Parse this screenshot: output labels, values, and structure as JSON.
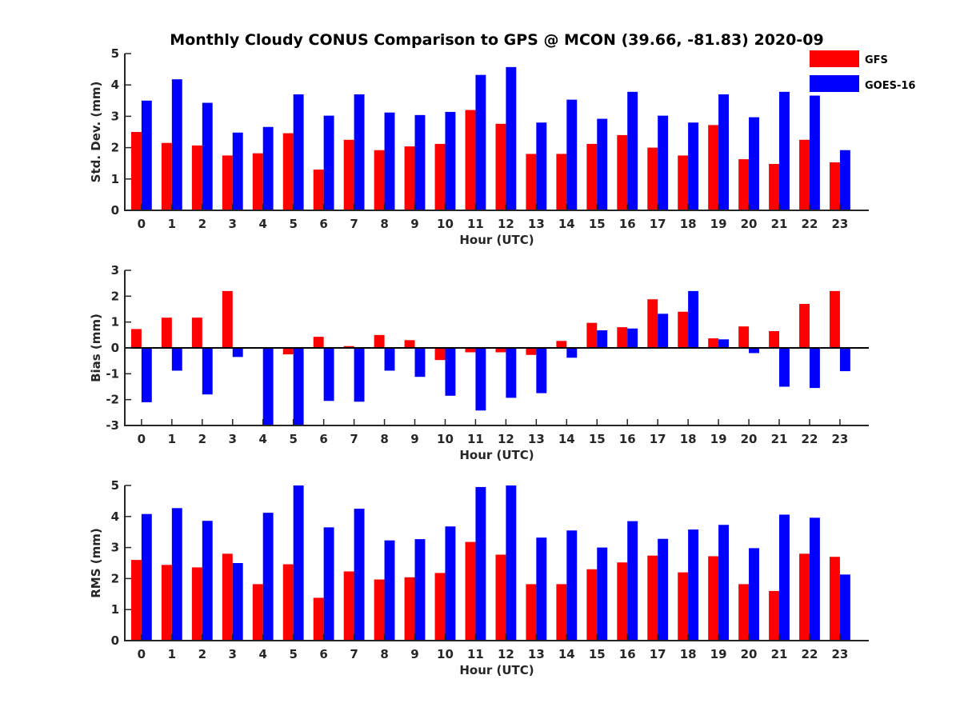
{
  "title": "Monthly Cloudy CONUS Comparison to GPS @ MCON (39.66, -81.83) 2020-09",
  "legend": [
    {
      "name": "GFS",
      "color": "#ff0000"
    },
    {
      "name": "GOES-16",
      "color": "#0000ff"
    }
  ],
  "chart_data": [
    {
      "type": "bar",
      "id": "std",
      "ylabel": "Std. Dev. (mm)",
      "xlabel": "Hour (UTC)",
      "ylim": [
        0,
        5
      ],
      "yticks": [
        0,
        1,
        2,
        3,
        4,
        5
      ],
      "categories": [
        "0",
        "1",
        "2",
        "3",
        "4",
        "5",
        "6",
        "7",
        "8",
        "9",
        "10",
        "11",
        "12",
        "13",
        "14",
        "15",
        "16",
        "17",
        "18",
        "19",
        "20",
        "21",
        "22",
        "23"
      ],
      "series": [
        {
          "name": "GFS",
          "color": "#ff0000",
          "values": [
            2.5,
            2.15,
            2.07,
            1.75,
            1.82,
            2.46,
            1.3,
            2.25,
            1.92,
            2.04,
            2.12,
            3.2,
            2.76,
            1.8,
            1.8,
            2.12,
            2.4,
            2.0,
            1.75,
            2.72,
            1.63,
            1.48,
            2.25,
            1.53
          ]
        },
        {
          "name": "GOES-16",
          "color": "#0000ff",
          "values": [
            3.5,
            4.18,
            3.43,
            2.48,
            2.66,
            3.7,
            3.02,
            3.7,
            3.12,
            3.04,
            3.14,
            4.32,
            4.57,
            2.8,
            3.53,
            2.92,
            3.78,
            3.02,
            2.8,
            3.7,
            2.97,
            3.78,
            3.66,
            1.92
          ]
        }
      ]
    },
    {
      "type": "bar",
      "id": "bias",
      "ylabel": "Bias (mm)",
      "xlabel": "Hour (UTC)",
      "ylim": [
        -3,
        3
      ],
      "yticks": [
        -3,
        -2,
        -1,
        0,
        1,
        2,
        3
      ],
      "zero_line": true,
      "categories": [
        "0",
        "1",
        "2",
        "3",
        "4",
        "5",
        "6",
        "7",
        "8",
        "9",
        "10",
        "11",
        "12",
        "13",
        "14",
        "15",
        "16",
        "17",
        "18",
        "19",
        "20",
        "21",
        "22",
        "23"
      ],
      "series": [
        {
          "name": "GFS",
          "color": "#ff0000",
          "values": [
            0.73,
            1.17,
            1.17,
            2.2,
            0.0,
            -0.25,
            0.43,
            0.07,
            0.5,
            0.3,
            -0.47,
            -0.17,
            -0.17,
            -0.27,
            0.27,
            0.97,
            0.8,
            1.88,
            1.4,
            0.37,
            0.83,
            0.65,
            1.7,
            2.2
          ]
        },
        {
          "name": "GOES-16",
          "color": "#0000ff",
          "values": [
            -2.1,
            -0.88,
            -1.8,
            -0.35,
            -3.0,
            -3.0,
            -2.05,
            -2.08,
            -0.88,
            -1.12,
            -1.85,
            -2.42,
            -1.93,
            -1.75,
            -0.38,
            0.68,
            0.75,
            1.32,
            2.2,
            0.33,
            -0.2,
            -1.5,
            -1.55,
            -0.9
          ]
        }
      ]
    },
    {
      "type": "bar",
      "id": "rms",
      "ylabel": "RMS (mm)",
      "xlabel": "Hour (UTC)",
      "ylim": [
        0,
        5
      ],
      "yticks": [
        0,
        1,
        2,
        3,
        4,
        5
      ],
      "categories": [
        "0",
        "1",
        "2",
        "3",
        "4",
        "5",
        "6",
        "7",
        "8",
        "9",
        "10",
        "11",
        "12",
        "13",
        "14",
        "15",
        "16",
        "17",
        "18",
        "19",
        "20",
        "21",
        "22",
        "23"
      ],
      "series": [
        {
          "name": "GFS",
          "color": "#ff0000",
          "values": [
            2.6,
            2.44,
            2.36,
            2.8,
            1.82,
            2.46,
            1.38,
            2.23,
            1.97,
            2.04,
            2.18,
            3.18,
            2.77,
            1.82,
            1.82,
            2.3,
            2.52,
            2.74,
            2.2,
            2.72,
            1.82,
            1.6,
            2.8,
            2.7
          ]
        },
        {
          "name": "GOES-16",
          "color": "#0000ff",
          "values": [
            4.08,
            4.27,
            3.86,
            2.5,
            4.12,
            5.0,
            3.65,
            4.25,
            3.23,
            3.27,
            3.68,
            4.95,
            5.0,
            3.32,
            3.55,
            3.0,
            3.85,
            3.28,
            3.58,
            3.73,
            2.98,
            4.06,
            3.96,
            2.13
          ]
        }
      ]
    }
  ]
}
